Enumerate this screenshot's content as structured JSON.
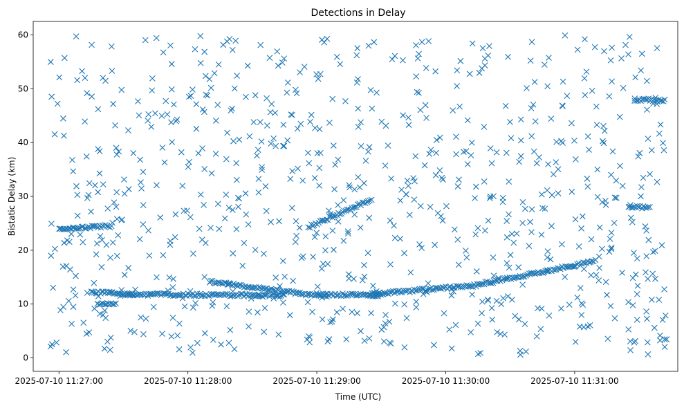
{
  "chart_data": {
    "type": "scatter",
    "title": "Detections in Delay",
    "xlabel": "Time (UTC)",
    "ylabel": "Bistatic Delay (km)",
    "xlim": [
      "2025-07-10 11:26:48",
      "2025-07-10 11:31:48"
    ],
    "ylim": [
      -2.5,
      62.5
    ],
    "xticks": [
      "2025-07-10 11:27:00",
      "2025-07-10 11:28:00",
      "2025-07-10 11:29:00",
      "2025-07-10 11:30:00",
      "2025-07-10 11:31:00"
    ],
    "yticks": [
      "0",
      "10",
      "20",
      "30",
      "40",
      "50",
      "60"
    ],
    "grid": false,
    "marker": "x",
    "color": "#1f77b4",
    "series": [
      {
        "name": "",
        "tracks": [
          {
            "x_start": "2025-07-10 11:27:00",
            "x_end": "2025-07-10 11:27:25",
            "y_start": 24.0,
            "y_end": 24.5
          },
          {
            "x_start": "2025-07-10 11:27:15",
            "x_end": "2025-07-10 11:27:35",
            "y_start": 12.2,
            "y_end": 11.8
          },
          {
            "x_start": "2025-07-10 11:27:18",
            "x_end": "2025-07-10 11:27:27",
            "y_start": 10.0,
            "y_end": 10.2
          },
          {
            "x_start": "2025-07-10 11:27:30",
            "x_end": "2025-07-10 11:28:45",
            "y_start": 11.8,
            "y_end": 11.6
          },
          {
            "x_start": "2025-07-10 11:28:10",
            "x_end": "2025-07-10 11:29:05",
            "y_start": 14.2,
            "y_end": 11.3
          },
          {
            "x_start": "2025-07-10 11:29:00",
            "x_end": "2025-07-10 11:29:30",
            "y_start": 11.8,
            "y_end": 11.6
          },
          {
            "x_start": "2025-07-10 11:29:25",
            "x_end": "2025-07-10 11:30:15",
            "y_start": 11.8,
            "y_end": 13.5
          },
          {
            "x_start": "2025-07-10 11:30:15",
            "x_end": "2025-07-10 11:31:10",
            "y_start": 13.6,
            "y_end": 18.0
          },
          {
            "x_start": "2025-07-10 11:28:56",
            "x_end": "2025-07-10 11:29:26",
            "y_start": 24.3,
            "y_end": 29.5
          },
          {
            "x_start": "2025-07-10 11:31:28",
            "x_end": "2025-07-10 11:31:42",
            "y_start": 48.0,
            "y_end": 47.8
          },
          {
            "x_start": "2025-07-10 11:31:25",
            "x_end": "2025-07-10 11:31:35",
            "y_start": 28.0,
            "y_end": 28.0
          }
        ],
        "clutter": {
          "count": 820,
          "x_range": [
            "2025-07-10 11:26:55",
            "2025-07-10 11:31:43"
          ],
          "y_range": [
            0.5,
            60.0
          ]
        }
      }
    ]
  }
}
